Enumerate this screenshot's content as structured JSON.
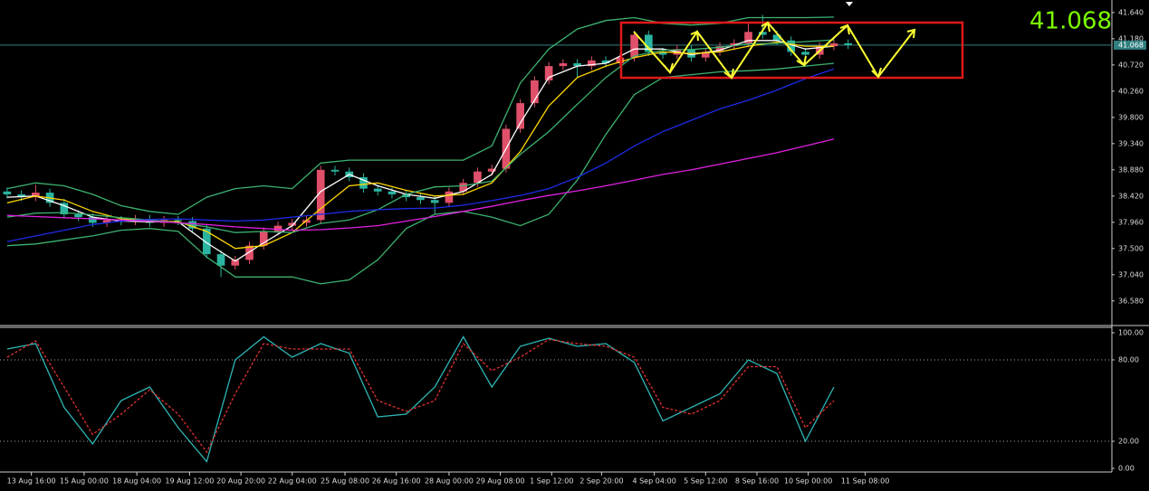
{
  "chart_data": [
    {
      "type": "candlestick",
      "up_color": "#e0506a",
      "down_color": "#2bb5a0",
      "xlim": [
        -0.5,
        77.5
      ],
      "ylim": [
        36.18,
        41.86
      ],
      "yticks": [
        {
          "value": 41.64,
          "label": "41.640"
        },
        {
          "value": 41.18,
          "label": "41.180"
        },
        {
          "value": 40.72,
          "label": "40.720"
        },
        {
          "value": 40.26,
          "label": "40.260"
        },
        {
          "value": 39.8,
          "label": "39.800"
        },
        {
          "value": 39.34,
          "label": "39.340"
        },
        {
          "value": 38.88,
          "label": "38.880"
        },
        {
          "value": 38.42,
          "label": "38.420"
        },
        {
          "value": 37.96,
          "label": "37.960"
        },
        {
          "value": 37.5,
          "label": "37.500"
        },
        {
          "value": 37.04,
          "label": "37.040"
        },
        {
          "value": 36.58,
          "label": "36.580"
        }
      ],
      "current_price": 41.068,
      "xticks": [
        {
          "value": 1.7,
          "label": "13 Aug 16:00"
        },
        {
          "value": 5.4,
          "label": "15 Aug 00:00"
        },
        {
          "value": 9.1,
          "label": "18 Aug 04:00"
        },
        {
          "value": 12.8,
          "label": "19 Aug 12:00"
        },
        {
          "value": 16.4,
          "label": "20 Aug 20:00"
        },
        {
          "value": 20.0,
          "label": "22 Aug 04:00"
        },
        {
          "value": 23.7,
          "label": "25 Aug 08:00"
        },
        {
          "value": 27.3,
          "label": "26 Aug 16:00"
        },
        {
          "value": 31.0,
          "label": "28 Aug 00:00"
        },
        {
          "value": 34.6,
          "label": "29 Aug 08:00"
        },
        {
          "value": 38.2,
          "label": "1 Sep 12:00"
        },
        {
          "value": 41.7,
          "label": "2 Sep 20:00"
        },
        {
          "value": 45.4,
          "label": "4 Sep 04:00"
        },
        {
          "value": 49.0,
          "label": "5 Sep 12:00"
        },
        {
          "value": 52.6,
          "label": "8 Sep 16:00"
        },
        {
          "value": 56.2,
          "label": "10 Sep 00:00"
        },
        {
          "value": 60.2,
          "label": "11 Sep 08:00"
        }
      ],
      "open": [
        38.5,
        38.45,
        38.4,
        38.48,
        38.3,
        38.1,
        38.05,
        37.95,
        38.0,
        37.98,
        38.02,
        37.95,
        38.0,
        37.98,
        37.85,
        37.4,
        37.2,
        37.3,
        37.55,
        37.8,
        37.9,
        37.95,
        38.0,
        38.88,
        38.85,
        38.75,
        38.55,
        38.5,
        38.45,
        38.4,
        38.35,
        38.3,
        38.5,
        38.65,
        38.85,
        38.9,
        39.6,
        40.05,
        40.45,
        40.7,
        40.75,
        40.7,
        40.8,
        40.75,
        40.85,
        41.25,
        40.95,
        40.9,
        41.0,
        40.85,
        40.95,
        41.05,
        41.1,
        41.3,
        41.25,
        41.15,
        40.95,
        40.9,
        41.05,
        41.1
      ],
      "high": [
        38.57,
        38.52,
        38.62,
        38.55,
        38.37,
        38.17,
        38.12,
        38.07,
        38.07,
        38.09,
        38.09,
        38.07,
        38.07,
        38.05,
        37.92,
        37.47,
        37.37,
        37.62,
        37.87,
        37.97,
        38.02,
        38.07,
        38.95,
        38.95,
        38.92,
        38.82,
        38.62,
        38.57,
        38.52,
        38.47,
        38.42,
        38.57,
        38.72,
        38.92,
        38.97,
        39.67,
        40.12,
        40.52,
        40.77,
        40.82,
        40.82,
        40.87,
        40.87,
        40.92,
        41.32,
        41.32,
        41.02,
        41.07,
        41.07,
        41.02,
        41.12,
        41.17,
        41.45,
        41.6,
        41.32,
        41.22,
        41.02,
        41.12,
        41.17,
        41.17
      ],
      "low": [
        38.38,
        38.33,
        38.33,
        38.23,
        38.03,
        37.98,
        37.88,
        37.88,
        37.91,
        37.91,
        37.88,
        37.88,
        37.91,
        37.78,
        37.33,
        37.0,
        37.13,
        37.23,
        37.48,
        37.73,
        37.83,
        37.88,
        37.93,
        38.78,
        38.68,
        38.48,
        38.43,
        38.38,
        38.33,
        38.28,
        38.1,
        38.23,
        38.43,
        38.58,
        38.78,
        38.83,
        39.53,
        39.98,
        40.38,
        40.63,
        40.5,
        40.63,
        40.68,
        40.68,
        40.78,
        40.88,
        40.83,
        40.83,
        40.78,
        40.78,
        40.88,
        40.98,
        41.03,
        41.18,
        41.08,
        40.88,
        40.7,
        40.83,
        40.98,
        41.0
      ],
      "close": [
        38.45,
        38.4,
        38.48,
        38.3,
        38.1,
        38.05,
        37.95,
        38.0,
        37.98,
        38.02,
        37.95,
        38.0,
        37.98,
        37.85,
        37.4,
        37.2,
        37.3,
        37.55,
        37.8,
        37.9,
        37.95,
        38.0,
        38.88,
        38.85,
        38.75,
        38.55,
        38.5,
        38.45,
        38.4,
        38.35,
        38.3,
        38.5,
        38.65,
        38.85,
        38.9,
        39.6,
        40.05,
        40.45,
        40.7,
        40.75,
        40.7,
        40.8,
        40.75,
        40.85,
        41.25,
        40.95,
        40.9,
        41.0,
        40.85,
        40.95,
        41.05,
        41.1,
        41.3,
        41.25,
        41.15,
        40.95,
        40.9,
        41.05,
        41.1,
        41.07
      ],
      "overlays": {
        "x": [
          0,
          2,
          4,
          6,
          8,
          10,
          12,
          14,
          16,
          18,
          20,
          22,
          24,
          26,
          28,
          30,
          32,
          34,
          36,
          38,
          40,
          42,
          44,
          46,
          48,
          50,
          52,
          54,
          56,
          58
        ],
        "lines": [
          {
            "color": "#ffffff",
            "values": [
              38.4,
              38.42,
              38.25,
              38.05,
              37.98,
              37.97,
              37.97,
              37.6,
              37.28,
              37.6,
              37.9,
              38.5,
              38.8,
              38.6,
              38.45,
              38.38,
              38.5,
              38.8,
              39.7,
              40.5,
              40.7,
              40.75,
              41.0,
              41.0,
              40.9,
              40.98,
              41.15,
              41.15,
              41.0,
              41.05
            ]
          },
          {
            "color": "#ffd700",
            "values": [
              38.3,
              38.42,
              38.35,
              38.15,
              38.02,
              37.98,
              37.97,
              37.8,
              37.5,
              37.55,
              37.78,
              38.2,
              38.6,
              38.65,
              38.52,
              38.42,
              38.45,
              38.65,
              39.2,
              40.0,
              40.5,
              40.7,
              40.85,
              40.95,
              40.92,
              40.95,
              41.05,
              41.12,
              41.05,
              41.05
            ]
          },
          {
            "color": "#3cb371",
            "values": [
              38.55,
              38.65,
              38.6,
              38.45,
              38.25,
              38.15,
              38.1,
              38.4,
              38.55,
              38.6,
              38.55,
              39.0,
              39.05,
              39.05,
              39.05,
              39.05,
              39.05,
              39.3,
              40.4,
              41.0,
              41.35,
              41.5,
              41.55,
              41.45,
              41.42,
              41.45,
              41.55,
              41.55,
              41.55,
              41.56
            ]
          },
          {
            "color": "#3cb371",
            "values": [
              38.05,
              38.12,
              38.13,
              38.09,
              38.04,
              38.0,
              37.95,
              37.88,
              37.78,
              37.8,
              37.78,
              37.94,
              38.0,
              38.18,
              38.45,
              38.58,
              38.6,
              38.68,
              39.15,
              39.55,
              40.03,
              40.5,
              40.88,
              40.98,
              40.99,
              41.03,
              41.09,
              41.1,
              41.13,
              41.16
            ]
          },
          {
            "color": "#3cb371",
            "values": [
              37.55,
              37.58,
              37.65,
              37.72,
              37.82,
              37.85,
              37.8,
              37.35,
              37.0,
              37.0,
              37.0,
              36.88,
              36.95,
              37.3,
              37.85,
              38.1,
              38.15,
              38.05,
              37.9,
              38.1,
              38.7,
              39.5,
              40.2,
              40.5,
              40.55,
              40.6,
              40.62,
              40.65,
              40.7,
              40.75
            ]
          },
          {
            "color": "#1e2be6",
            "values": [
              37.62,
              37.72,
              37.82,
              37.92,
              37.98,
              38.01,
              38.02,
              38.0,
              37.98,
              38.0,
              38.05,
              38.1,
              38.15,
              38.18,
              38.2,
              38.21,
              38.26,
              38.34,
              38.43,
              38.55,
              38.75,
              39.0,
              39.3,
              39.55,
              39.75,
              39.95,
              40.1,
              40.28,
              40.48,
              40.65
            ]
          },
          {
            "color": "#e020e0",
            "values": [
              38.08,
              38.06,
              38.04,
              38.02,
              38.0,
              37.98,
              37.95,
              37.92,
              37.88,
              37.85,
              37.82,
              37.83,
              37.86,
              37.9,
              37.98,
              38.06,
              38.15,
              38.24,
              38.34,
              38.43,
              38.51,
              38.6,
              38.7,
              38.8,
              38.88,
              38.98,
              39.08,
              39.18,
              39.3,
              39.42
            ]
          }
        ]
      }
    },
    {
      "type": "line",
      "ylim": [
        0,
        100
      ],
      "yticks": [
        {
          "value": 100,
          "label": "100.00"
        },
        {
          "value": 80,
          "label": "80.00"
        },
        {
          "value": 20,
          "label": "20.00"
        },
        {
          "value": 0,
          "label": "0.00"
        }
      ],
      "levels": [
        80,
        20
      ],
      "x": [
        0,
        2,
        4,
        6,
        8,
        10,
        12,
        14,
        16,
        18,
        20,
        22,
        24,
        26,
        28,
        30,
        32,
        34,
        36,
        38,
        40,
        42,
        44,
        46,
        48,
        50,
        52,
        54,
        56,
        58
      ],
      "series": [
        {
          "color": "#2fb5b5",
          "dash": false,
          "values": [
            88,
            92,
            45,
            18,
            50,
            60,
            30,
            5,
            80,
            97,
            82,
            92,
            85,
            38,
            40,
            60,
            97,
            60,
            90,
            96,
            90,
            92,
            78,
            35,
            45,
            55,
            80,
            70,
            20,
            60
          ]
        },
        {
          "color": "#e03030",
          "dash": true,
          "values": [
            82,
            94,
            60,
            25,
            40,
            58,
            40,
            12,
            55,
            92,
            88,
            88,
            88,
            50,
            42,
            50,
            92,
            72,
            82,
            95,
            92,
            90,
            82,
            45,
            40,
            50,
            75,
            75,
            30,
            50
          ]
        }
      ]
    }
  ]
}
